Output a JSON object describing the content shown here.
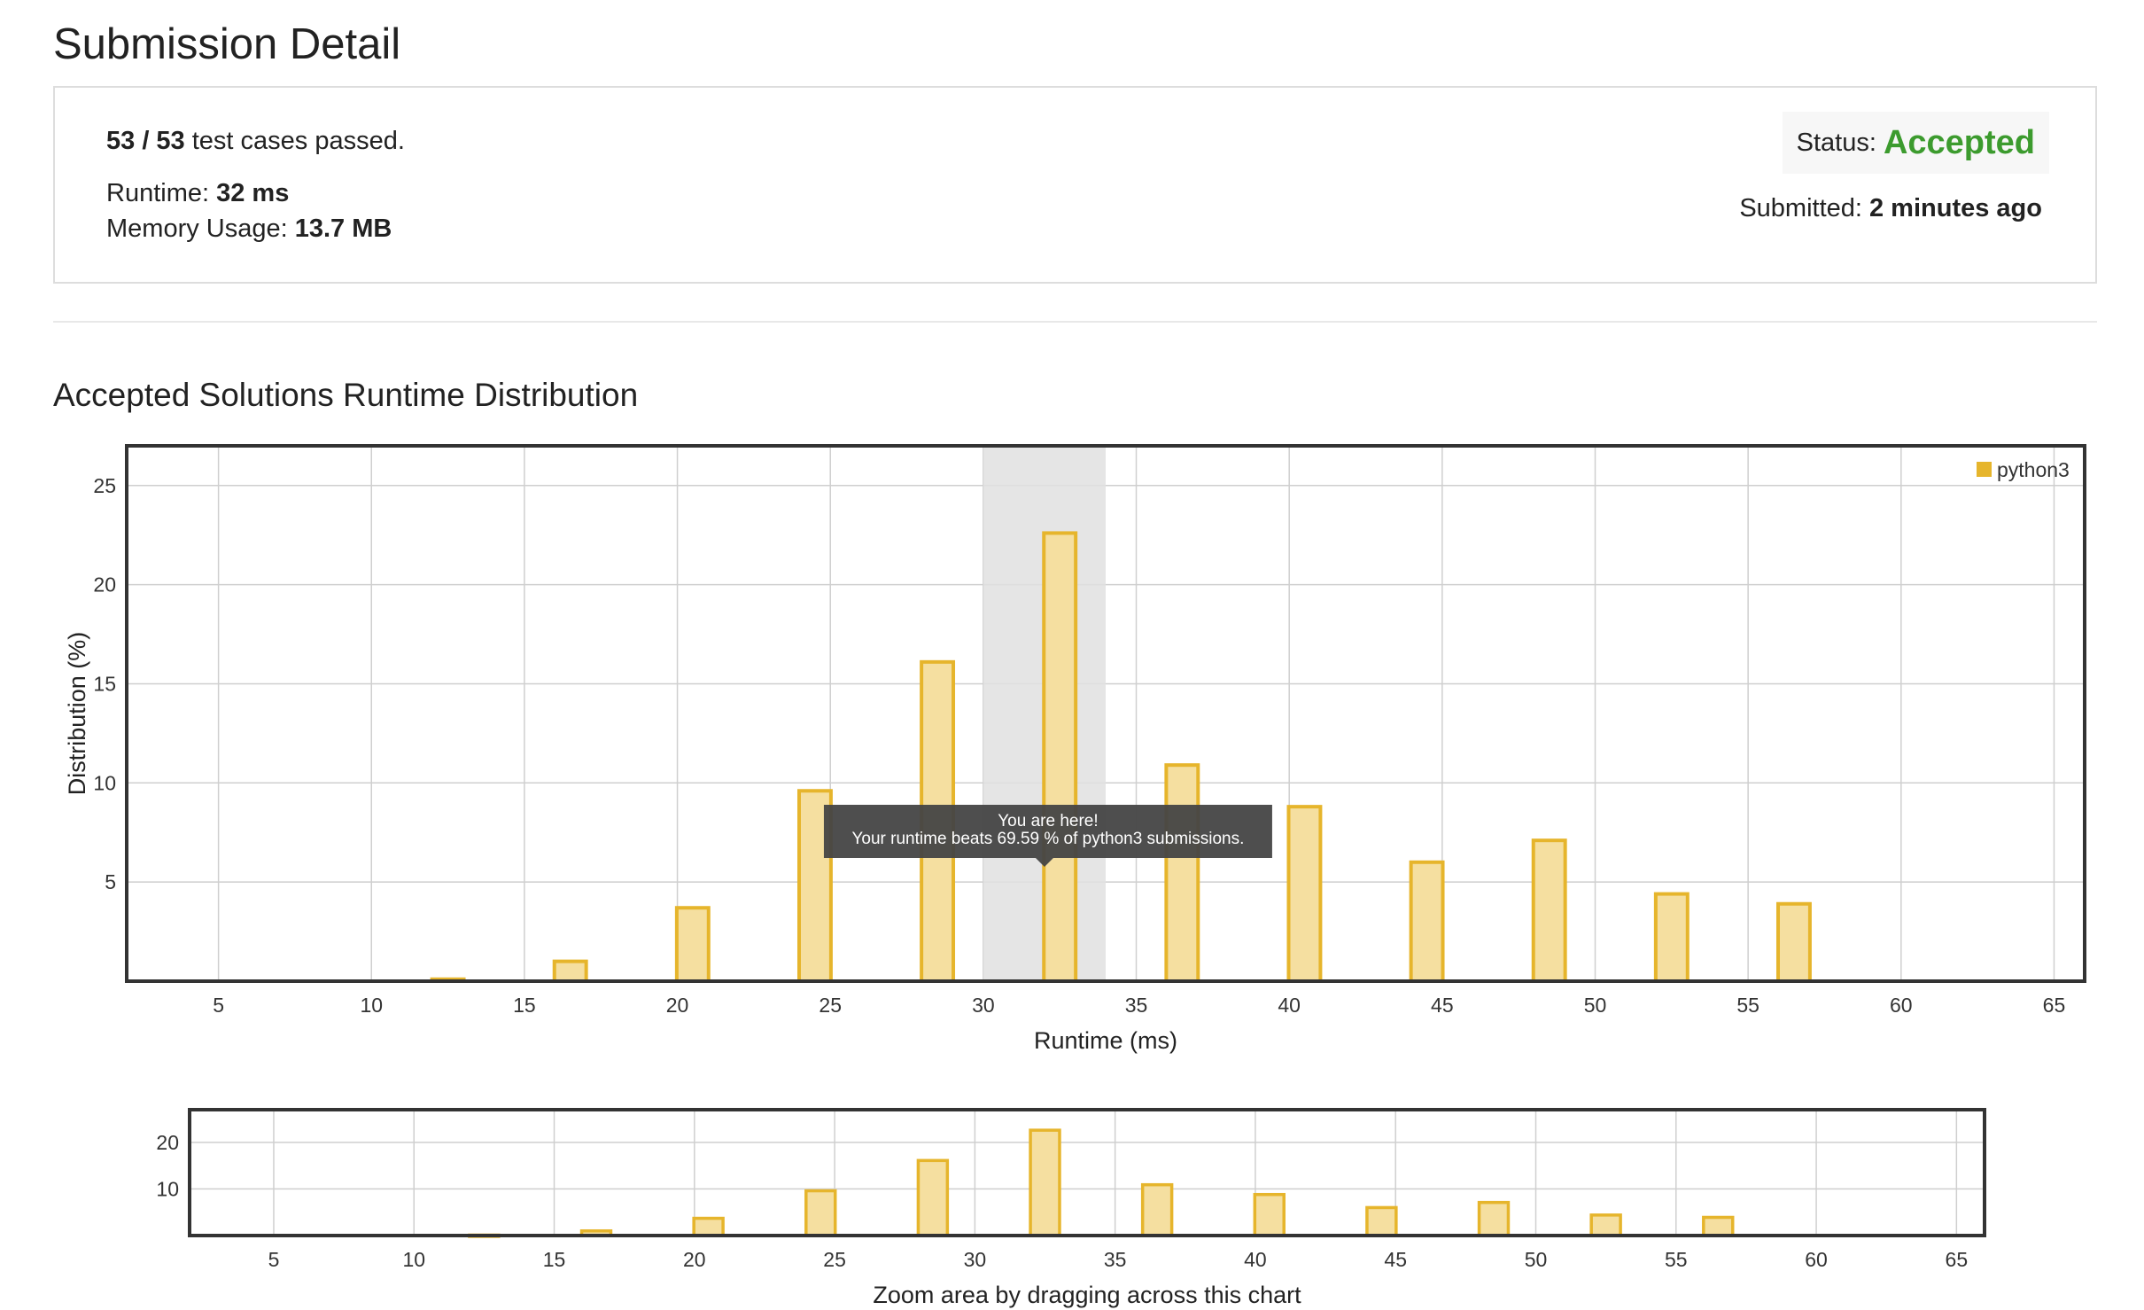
{
  "page": {
    "title": "Submission Detail"
  },
  "summary": {
    "passed": "53 / 53",
    "passed_suffix": " test cases passed.",
    "runtime_label": "Runtime: ",
    "runtime_value": "32 ms",
    "memory_label": "Memory Usage: ",
    "memory_value": "13.7 MB",
    "status_label": "Status:",
    "status_value": "Accepted",
    "submitted_label": "Submitted: ",
    "submitted_value": "2 minutes ago"
  },
  "section": {
    "title": "Accepted Solutions Runtime Distribution"
  },
  "tooltip": {
    "line1": "You are here!",
    "line2": "Your runtime beats 69.59 % of python3 submissions."
  },
  "navigator": {
    "caption": "Zoom area by dragging across this chart"
  },
  "colors": {
    "bar_fill": "#f5dfa0",
    "bar_stroke": "#e6b52c",
    "highlight_band": "#e0e0e0",
    "accepted": "#3c9b2e",
    "tooltip_bg": "#444444"
  },
  "chart_data": [
    {
      "type": "bar",
      "xlabel": "Runtime (ms)",
      "ylabel": "Distribution (%)",
      "xlim": [
        2,
        66
      ],
      "ylim": [
        0,
        27
      ],
      "xticks": [
        5,
        10,
        15,
        20,
        25,
        30,
        35,
        40,
        45,
        50,
        55,
        60,
        65
      ],
      "yticks": [
        5,
        10,
        15,
        20,
        25
      ],
      "grid": true,
      "legend": "top-right",
      "highlight_range": [
        30,
        34
      ],
      "series": [
        {
          "name": "python3",
          "x": [
            12.5,
            16.5,
            20.5,
            24.5,
            28.5,
            32.5,
            36.5,
            40.5,
            44.5,
            48.5,
            52.5,
            56.5
          ],
          "values": [
            0.1,
            1.0,
            3.7,
            9.6,
            16.1,
            22.6,
            10.9,
            8.8,
            6.0,
            7.1,
            4.4,
            3.9
          ]
        }
      ]
    },
    {
      "type": "bar",
      "role": "navigator",
      "xlim": [
        2,
        66
      ],
      "ylim": [
        0,
        27
      ],
      "xticks": [
        5,
        10,
        15,
        20,
        25,
        30,
        35,
        40,
        45,
        50,
        55,
        60,
        65
      ],
      "yticks": [
        10,
        20
      ],
      "grid": true,
      "series": [
        {
          "x": [
            12.5,
            16.5,
            20.5,
            24.5,
            28.5,
            32.5,
            36.5,
            40.5,
            44.5,
            48.5,
            52.5,
            56.5
          ],
          "values": [
            0.1,
            1.0,
            3.7,
            9.6,
            16.1,
            22.6,
            10.9,
            8.8,
            6.0,
            7.1,
            4.4,
            3.9
          ]
        }
      ]
    }
  ]
}
